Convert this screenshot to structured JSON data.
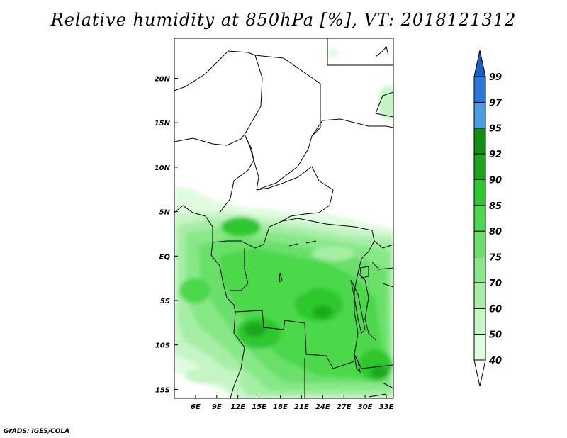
{
  "title": "Relative humidity at 850hPa [%], VT: 2018121312",
  "credit": "GrADS: IGES/COLA",
  "map": {
    "lon_range": [
      3,
      34
    ],
    "lat_range": [
      -16,
      24.5
    ],
    "lon_ticks": [
      {
        "value": 6,
        "label": "6E"
      },
      {
        "value": 9,
        "label": "9E"
      },
      {
        "value": 12,
        "label": "12E"
      },
      {
        "value": 15,
        "label": "15E"
      },
      {
        "value": 18,
        "label": "18E"
      },
      {
        "value": 21,
        "label": "21E"
      },
      {
        "value": 24,
        "label": "24E"
      },
      {
        "value": 27,
        "label": "27E"
      },
      {
        "value": 30,
        "label": "30E"
      },
      {
        "value": 33,
        "label": "33E"
      }
    ],
    "lat_ticks": [
      {
        "value": 20,
        "label": "20N"
      },
      {
        "value": 15,
        "label": "15N"
      },
      {
        "value": 10,
        "label": "10N"
      },
      {
        "value": 5,
        "label": "5N"
      },
      {
        "value": 0,
        "label": "EQ"
      },
      {
        "value": -5,
        "label": "5S"
      },
      {
        "value": -10,
        "label": "10S"
      },
      {
        "value": -15,
        "label": "15S"
      }
    ]
  },
  "colorbar": {
    "levels": [
      "40",
      "50",
      "60",
      "70",
      "75",
      "80",
      "85",
      "90",
      "92",
      "95",
      "97",
      "99"
    ],
    "colors": [
      "#ffffff",
      "#e1fbe1",
      "#c4f5c4",
      "#a6eea6",
      "#88e888",
      "#6ae06a",
      "#4cd84c",
      "#2ec82e",
      "#1aa81a",
      "#0e9010",
      "#4a9ee8",
      "#2a78dc",
      "#1a5ec8"
    ]
  }
}
